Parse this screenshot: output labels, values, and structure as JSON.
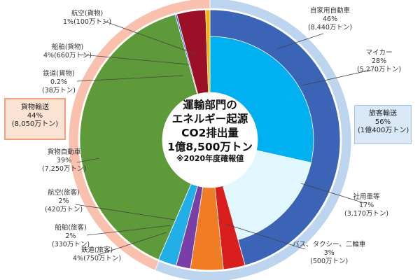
{
  "chart_data": {
    "type": "pie",
    "center_text": [
      "運輸部門の",
      "エネルギー起源",
      "CO2排出量",
      "1億8,500万トン",
      "※2020年度確報値"
    ],
    "outer_ring": [
      {
        "label": "旅客輸送",
        "percent_text": "56%",
        "amount_text": "(1億400万トン)",
        "value": 10400,
        "color": "#bcd4ee"
      },
      {
        "label": "貨物輸送",
        "percent_text": "44%",
        "amount_text": "(8,050万トン)",
        "value": 8050,
        "color": "#f8c0ad"
      }
    ],
    "inner_ring": [
      {
        "label": "自家用自動車",
        "percent_text": "46%",
        "amount_text": "(8,440万トン)",
        "value": 8440,
        "color": "#3b63b6"
      },
      {
        "label": "マイカー",
        "percent_text": "28%",
        "amount_text": "(5,270万トン)",
        "value": 5270,
        "color": "#00b0f0",
        "inner_sub": true
      },
      {
        "label": "社用車等",
        "percent_text": "17%",
        "amount_text": "(3,170万トン)",
        "value": 3170,
        "color": "#dff7fd",
        "inner_sub": true
      },
      {
        "label": "バス、タクシー、二輪車",
        "percent_text": "3%",
        "amount_text": "(500万トン)",
        "value": 500,
        "color": "#d91e1e"
      },
      {
        "label": "鉄道(旅客)",
        "percent_text": "4%",
        "amount_text": "(750万トン)",
        "value": 750,
        "color": "#f07d23"
      },
      {
        "label": "船舶(旅客)",
        "percent_text": "2%",
        "amount_text": "(330万トン)",
        "value": 330,
        "color": "#7a3fa6"
      },
      {
        "label": "航空(旅客)",
        "percent_text": "2%",
        "amount_text": "(420万トン)",
        "value": 420,
        "color": "#22aee6"
      },
      {
        "label": "貨物自動車",
        "percent_text": "39%",
        "amount_text": "(7,250万トン)",
        "value": 7250,
        "color": "#5f9a3a"
      },
      {
        "label": "鉄道(貨物)",
        "percent_text": "0.2%",
        "amount_text": "(38万トン)",
        "value": 38,
        "color": "#2d6cdf"
      },
      {
        "label": "船舶(貨物)",
        "percent_text": "4%",
        "amount_text": "(660万トン)",
        "value": 660,
        "color": "#9b1027"
      },
      {
        "label": "航空(貨物)",
        "percent_text": "1%",
        "amount_text": "(100万トン)",
        "value": 100,
        "color": "#f4b400"
      }
    ]
  }
}
